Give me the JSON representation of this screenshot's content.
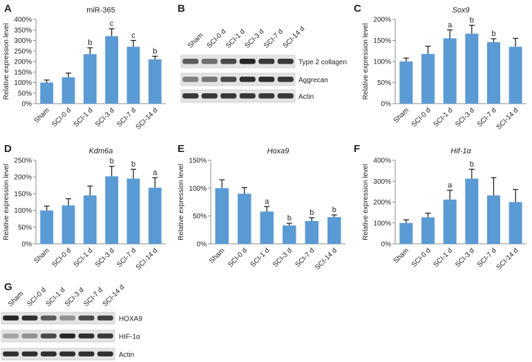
{
  "panel_letters": [
    "A",
    "B",
    "C",
    "D",
    "E",
    "F",
    "G"
  ],
  "chart_data": [
    {
      "panel": "A",
      "type": "bar",
      "title": "miR-365",
      "title_italic": false,
      "ylabel": "Relative expression level",
      "categories": [
        "Sham",
        "SCI-0 d",
        "SCI-1 d",
        "SCI-3 d",
        "SCI-7 d",
        "SCI-14 d"
      ],
      "values": [
        100,
        125,
        235,
        320,
        270,
        210
      ],
      "errors": [
        12,
        20,
        30,
        35,
        30,
        15
      ],
      "annotations": [
        "",
        "",
        "b",
        "c",
        "c",
        "b"
      ],
      "ylim": [
        0,
        400
      ],
      "yticks": [
        0,
        50,
        100,
        150,
        200,
        250,
        300,
        350,
        400
      ],
      "yticklabels": [
        "0%",
        "50%",
        "100%",
        "150%",
        "200%",
        "250%",
        "300%",
        "350%",
        "400%"
      ],
      "bar_color": "#5b9bd5"
    },
    {
      "panel": "C",
      "type": "bar",
      "title": "Sox9",
      "title_italic": true,
      "ylabel": "Relative expression level",
      "categories": [
        "Sham",
        "SCI-0 d",
        "SCI-1 d",
        "SCI-3 d",
        "SCI-7 d",
        "SCI-14 d"
      ],
      "values": [
        100,
        118,
        155,
        166,
        146,
        135
      ],
      "errors": [
        8,
        18,
        20,
        20,
        8,
        20
      ],
      "annotations": [
        "",
        "",
        "a",
        "b",
        "b",
        ""
      ],
      "ylim": [
        0,
        200
      ],
      "yticks": [
        0,
        50,
        100,
        150,
        200
      ],
      "yticklabels": [
        "0%",
        "50%",
        "100%",
        "150%",
        "200%"
      ],
      "bar_color": "#5b9bd5"
    },
    {
      "panel": "D",
      "type": "bar",
      "title": "Kdm6a",
      "title_italic": true,
      "ylabel": "Relative expression level",
      "categories": [
        "Sham",
        "SCI-0 d",
        "SCI-1 d",
        "SCI-3 d",
        "SCI-7 d",
        "SCI-14 d"
      ],
      "values": [
        100,
        115,
        145,
        202,
        195,
        168
      ],
      "errors": [
        13,
        20,
        28,
        30,
        28,
        30
      ],
      "annotations": [
        "",
        "",
        "",
        "b",
        "b",
        "a"
      ],
      "ylim": [
        0,
        250
      ],
      "yticks": [
        0,
        50,
        100,
        150,
        200,
        250
      ],
      "yticklabels": [
        "0%",
        "50%",
        "100%",
        "150%",
        "200%",
        "250%"
      ],
      "bar_color": "#5b9bd5"
    },
    {
      "panel": "E",
      "type": "bar",
      "title": "Hoxa9",
      "title_italic": true,
      "ylabel": "Relative expression level",
      "categories": [
        "Sham",
        "SCI-0 d",
        "SCI-1 d",
        "SCI-3 d",
        "SCI-7 d",
        "SCI-14 d"
      ],
      "values": [
        100,
        90,
        58,
        33,
        41,
        48
      ],
      "errors": [
        15,
        11,
        9,
        4,
        6,
        4
      ],
      "annotations": [
        "",
        "",
        "a",
        "b",
        "b",
        "b"
      ],
      "ylim": [
        0,
        150
      ],
      "yticks": [
        0,
        50,
        100,
        150
      ],
      "yticklabels": [
        "0%",
        "50%",
        "100%",
        "150%"
      ],
      "bar_color": "#5b9bd5"
    },
    {
      "panel": "F",
      "type": "bar",
      "title": "Hif-1α",
      "title_italic": true,
      "ylabel": "Relative expression level",
      "categories": [
        "Sham",
        "SCI-0 d",
        "SCI-1 d",
        "SCI-3 d",
        "SCI-7 d",
        "SCI-14 d"
      ],
      "values": [
        100,
        127,
        212,
        312,
        232,
        200
      ],
      "errors": [
        15,
        20,
        45,
        45,
        85,
        60
      ],
      "annotations": [
        "",
        "",
        "a",
        "b",
        "",
        ""
      ],
      "ylim": [
        0,
        400
      ],
      "yticks": [
        0,
        100,
        200,
        300,
        400
      ],
      "yticklabels": [
        "0%",
        "100%",
        "200%",
        "300%",
        "400%"
      ],
      "bar_color": "#5b9bd5"
    }
  ],
  "blots": [
    {
      "panel": "B",
      "lanes": [
        "Sham",
        "SCI-0 d",
        "SCI-1 d",
        "SCI-3 d",
        "SCI-7 d",
        "SCI-14 d"
      ],
      "rows": [
        {
          "label": "Type 2 collagen",
          "intensity": [
            0.6,
            0.5,
            0.7,
            0.9,
            0.8,
            0.8
          ]
        },
        {
          "label": "Aggrecan",
          "intensity": [
            0.4,
            0.45,
            0.7,
            0.85,
            0.85,
            0.8
          ]
        },
        {
          "label": "Actin",
          "intensity": [
            0.8,
            0.8,
            0.8,
            0.8,
            0.8,
            0.8
          ]
        }
      ]
    },
    {
      "panel": "G",
      "lanes": [
        "Sham",
        "SCI-0 d",
        "SCI-1 d",
        "SCI-3 d",
        "SCI-7 d",
        "SCI-14 d"
      ],
      "rows": [
        {
          "label": "HOXA9",
          "intensity": [
            0.9,
            0.85,
            0.6,
            0.3,
            0.7,
            0.75
          ]
        },
        {
          "label": "HIF-1α",
          "intensity": [
            0.2,
            0.3,
            0.7,
            0.9,
            0.85,
            0.8
          ]
        },
        {
          "label": "Actin",
          "intensity": [
            0.85,
            0.85,
            0.85,
            0.85,
            0.85,
            0.85
          ]
        }
      ]
    }
  ]
}
